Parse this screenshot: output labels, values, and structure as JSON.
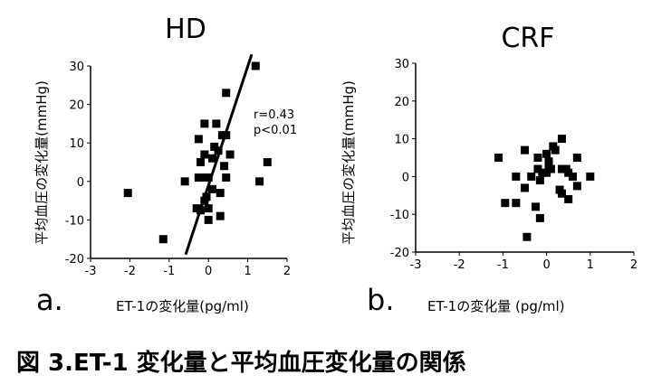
{
  "caption": "図 3.ET-1 変化量と平均血圧変化量の関係",
  "chart_data": [
    {
      "type": "scatter",
      "title": "HD",
      "panel_label": "a.",
      "xlabel": "ET-1の変化量(pg/ml)",
      "ylabel": "平均血圧の変化量(mmHg)",
      "xlim": [
        -3,
        2
      ],
      "ylim": [
        -20,
        30
      ],
      "xticks": [
        "-3",
        "-2",
        "-1",
        "0",
        "1",
        "2"
      ],
      "yticks": [
        "30",
        "20",
        "10",
        "0",
        "-10",
        "-20"
      ],
      "annotation": [
        "r=0.43",
        "p<0.01"
      ],
      "regression_line": [
        [
          -0.58,
          -19
        ],
        [
          1.1,
          33
        ]
      ],
      "points": [
        [
          1.2,
          30
        ],
        [
          0.45,
          23
        ],
        [
          -0.1,
          15
        ],
        [
          0.2,
          15
        ],
        [
          0.35,
          12
        ],
        [
          0.45,
          12
        ],
        [
          -0.25,
          11
        ],
        [
          -0.1,
          7
        ],
        [
          0.15,
          9
        ],
        [
          0.25,
          8
        ],
        [
          0.1,
          6
        ],
        [
          0.55,
          7
        ],
        [
          -0.2,
          5
        ],
        [
          0.4,
          4
        ],
        [
          1.5,
          5
        ],
        [
          -0.25,
          1
        ],
        [
          -0.1,
          1
        ],
        [
          0.0,
          1
        ],
        [
          0.45,
          1
        ],
        [
          -0.6,
          0
        ],
        [
          1.3,
          0
        ],
        [
          -2.05,
          -3
        ],
        [
          0.1,
          -2
        ],
        [
          0.3,
          -3
        ],
        [
          -0.05,
          -4
        ],
        [
          -0.1,
          -5
        ],
        [
          -0.3,
          -7
        ],
        [
          -0.2,
          -7.5
        ],
        [
          0.0,
          -7
        ],
        [
          0.3,
          -9
        ],
        [
          0.0,
          -10
        ],
        [
          -1.15,
          -15
        ]
      ]
    },
    {
      "type": "scatter",
      "title": "CRF",
      "panel_label": "b.",
      "xlabel": "ET-1の変化量 (pg/ml)",
      "ylabel": "平均血圧の変化量(mmHg)",
      "xlim": [
        -3,
        2
      ],
      "ylim": [
        -20,
        30
      ],
      "xticks": [
        "-3",
        "-2",
        "-1",
        "0",
        "1",
        "2"
      ],
      "yticks": [
        "30",
        "20",
        "10",
        "0",
        "-10",
        "-20"
      ],
      "points": [
        [
          -1.1,
          5
        ],
        [
          -0.5,
          7
        ],
        [
          -0.2,
          5
        ],
        [
          0.0,
          6
        ],
        [
          0.15,
          8
        ],
        [
          0.2,
          7
        ],
        [
          0.35,
          10
        ],
        [
          0.7,
          5
        ],
        [
          -0.7,
          0
        ],
        [
          -0.35,
          0
        ],
        [
          -0.2,
          2
        ],
        [
          -0.1,
          1
        ],
        [
          -0.15,
          -1
        ],
        [
          0.0,
          1
        ],
        [
          0.05,
          3
        ],
        [
          0.05,
          4
        ],
        [
          0.1,
          2
        ],
        [
          0.35,
          2
        ],
        [
          0.45,
          2
        ],
        [
          0.5,
          1
        ],
        [
          0.6,
          0
        ],
        [
          1.0,
          0
        ],
        [
          0.7,
          -2.5
        ],
        [
          -0.5,
          -3
        ],
        [
          0.3,
          -3.5
        ],
        [
          0.35,
          -4.5
        ],
        [
          0.5,
          -6
        ],
        [
          -0.95,
          -7
        ],
        [
          -0.7,
          -7
        ],
        [
          -0.25,
          -8
        ],
        [
          -0.15,
          -11
        ],
        [
          -0.45,
          -16
        ]
      ]
    }
  ]
}
